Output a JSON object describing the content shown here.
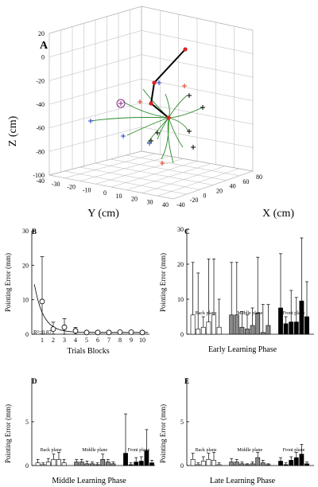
{
  "chart_data": [
    {
      "panel": "A",
      "type": "line3d",
      "zlabel": "Z (cm)",
      "xlabel": "X (cm)",
      "ylabel": "Y (cm)",
      "z_ticks": [
        "20",
        "0",
        "-20",
        "-40",
        "-60",
        "-80",
        "-100"
      ],
      "y_ticks": [
        "-40",
        "-30",
        "-20",
        "-10",
        "0",
        "10",
        "20",
        "30",
        "40"
      ],
      "x_ticks": [
        "-40",
        "-20",
        "0",
        "20",
        "40",
        "60",
        "80"
      ],
      "arm_colors": {
        "arm": "#000000",
        "joints": "#e02020",
        "paths": "#2a8a2a",
        "targets_back": "#1f3fcf",
        "targets_mid": "#e03a1a",
        "targets_front": "#000000",
        "highlight": "#8a2a8a"
      }
    },
    {
      "panel": "B",
      "type": "line",
      "ylabel": "Pointing Error (mm)",
      "xlabel": "Trials Blocks",
      "annotation": "R²=0.87",
      "ylim": [
        0,
        30
      ],
      "y_ticks": [
        "0",
        "10",
        "20",
        "30"
      ],
      "x": [
        1,
        2,
        3,
        4,
        5,
        6,
        7,
        8,
        9,
        10
      ],
      "x_ticks": [
        "1",
        "2",
        "3",
        "4",
        "5",
        "6",
        "7",
        "8",
        "9",
        "10"
      ],
      "values": [
        9.5,
        1.5,
        2.0,
        1.0,
        0.5,
        0.5,
        0.5,
        0.6,
        0.6,
        0.5
      ],
      "err": [
        13.0,
        2.0,
        2.5,
        1.0,
        0.4,
        0.4,
        0.3,
        0.3,
        0.3,
        0.2
      ],
      "fit": "exponential"
    },
    {
      "panel": "C",
      "type": "bar",
      "ylabel": "Pointing Error (mm)",
      "xlabel": "Early Learning Phase",
      "ylim": [
        0,
        30
      ],
      "y_ticks": [
        "0",
        "10",
        "20",
        "30"
      ],
      "groups": [
        {
          "name": "Back plane",
          "color": "#ffffff",
          "values": [
            5.5,
            1.5,
            2.0,
            3.5,
            5.5,
            2.0
          ],
          "err": [
            15.0,
            16.0,
            3.0,
            18.0,
            16.0,
            8.0
          ]
        },
        {
          "name": "Middle plane",
          "color": "#888888",
          "values": [
            5.5,
            5.5,
            2.0,
            1.5,
            2.5,
            6.0,
            0.5,
            2.5
          ],
          "err": [
            15.0,
            15.0,
            4.5,
            4.0,
            5.0,
            16.0,
            8.0,
            6.0
          ]
        },
        {
          "name": "Front plane",
          "color": "#000000",
          "values": [
            7.5,
            3.0,
            3.5,
            3.5,
            9.5,
            5.0
          ],
          "err": [
            15.5,
            2.0,
            9.0,
            7.0,
            18.0,
            10.0
          ]
        }
      ]
    },
    {
      "panel": "D",
      "type": "bar",
      "ylabel": "Pointing Error (mm)",
      "xlabel": "Middle Learning Phase",
      "ylim": [
        0,
        10
      ],
      "y_ticks": [
        "0",
        "5"
      ],
      "groups": [
        {
          "name": "Back plane",
          "color": "#ffffff",
          "values": [
            0.3,
            0.1,
            0.4,
            0.7,
            0.7,
            0.3
          ],
          "err": [
            0.4,
            0.2,
            0.4,
            0.6,
            0.8,
            0.4
          ]
        },
        {
          "name": "Middle plane",
          "color": "#888888",
          "values": [
            0.4,
            0.4,
            0.2,
            0.2,
            0.1,
            0.7,
            0.4,
            0.2
          ],
          "err": [
            0.3,
            0.3,
            0.3,
            0.2,
            0.2,
            0.6,
            0.3,
            0.2
          ]
        },
        {
          "name": "Front plane",
          "color": "#000000",
          "values": [
            1.4,
            0.1,
            0.4,
            0.5,
            1.7,
            0.3
          ],
          "err": [
            4.5,
            0.2,
            0.5,
            0.5,
            2.4,
            0.3
          ]
        }
      ]
    },
    {
      "panel": "E",
      "type": "bar",
      "ylabel": "Pointing Error (mm)",
      "xlabel": "Late Learning Phase",
      "ylim": [
        0,
        10
      ],
      "y_ticks": [
        "0",
        "5"
      ],
      "groups": [
        {
          "name": "Back plane",
          "color": "#ffffff",
          "values": [
            0.7,
            0.1,
            0.5,
            0.7,
            0.6,
            0.1
          ],
          "err": [
            0.7,
            0.2,
            0.5,
            0.7,
            0.9,
            0.2
          ]
        },
        {
          "name": "Middle plane",
          "color": "#888888",
          "values": [
            0.4,
            0.4,
            0.2,
            0.1,
            0.2,
            0.9,
            0.3,
            0.1
          ],
          "err": [
            0.4,
            0.3,
            0.2,
            0.1,
            0.2,
            0.6,
            0.3,
            0.1
          ]
        },
        {
          "name": "Front plane",
          "color": "#000000",
          "values": [
            0.5,
            0.1,
            0.6,
            0.9,
            1.3,
            0.2
          ],
          "err": [
            0.4,
            0.2,
            0.4,
            0.6,
            1.1,
            0.2
          ]
        }
      ]
    }
  ]
}
